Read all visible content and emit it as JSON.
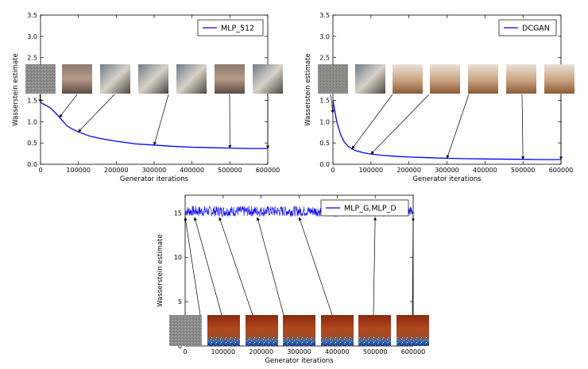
{
  "chart_data": [
    {
      "type": "line",
      "xlabel": "Generator iterations",
      "ylabel": "Wasserstein estimate",
      "xlim": [
        0,
        600000
      ],
      "ylim": [
        0,
        3.5
      ],
      "xticks": [
        0,
        100000,
        200000,
        300000,
        400000,
        500000,
        600000
      ],
      "yticks": [
        0.0,
        0.5,
        1.0,
        1.5,
        2.0,
        2.5,
        3.0,
        3.5
      ],
      "xtick_labels": [
        "0",
        "100000",
        "200000",
        "300000",
        "400000",
        "500000",
        "600000"
      ],
      "ytick_labels": [
        "0.0",
        "0.5",
        "1.0",
        "1.5",
        "2.0",
        "2.5",
        "3.0",
        "3.5"
      ],
      "legend": "top-right",
      "grid": false,
      "series": [
        {
          "name": "MLP_512",
          "color": "#0000ff",
          "x": [
            0,
            10000,
            25000,
            40000,
            55000,
            70000,
            85000,
            100000,
            130000,
            160000,
            200000,
            250000,
            300000,
            350000,
            400000,
            450000,
            500000,
            550000,
            600000
          ],
          "y": [
            1.45,
            1.4,
            1.33,
            1.2,
            1.05,
            0.9,
            0.82,
            0.76,
            0.66,
            0.6,
            0.54,
            0.48,
            0.45,
            0.42,
            0.4,
            0.39,
            0.38,
            0.37,
            0.37
          ]
        }
      ],
      "annotations": [
        {
          "target_x": 0,
          "target_y": 1.45,
          "image": "noise"
        },
        {
          "target_x": 50000,
          "target_y": 1.1,
          "image": "bedroom-sample"
        },
        {
          "target_x": 100000,
          "target_y": 0.76,
          "image": "bedroom-sample"
        },
        {
          "target_x": 300000,
          "target_y": 0.45,
          "image": "bedroom-sample"
        },
        {
          "target_x": 500000,
          "target_y": 0.38,
          "image": "bedroom-sample"
        },
        {
          "target_x": 600000,
          "target_y": 0.37,
          "image": "bedroom-sample"
        }
      ]
    },
    {
      "type": "line",
      "xlabel": "Generator iterations",
      "ylabel": "Wasserstein estimate",
      "xlim": [
        0,
        600000
      ],
      "ylim": [
        0,
        3.5
      ],
      "xticks": [
        0,
        100000,
        200000,
        300000,
        400000,
        500000,
        600000
      ],
      "yticks": [
        0.0,
        0.5,
        1.0,
        1.5,
        2.0,
        2.5,
        3.0,
        3.5
      ],
      "xtick_labels": [
        "0",
        "100000",
        "200000",
        "300000",
        "400000",
        "500000",
        "600000"
      ],
      "ytick_labels": [
        "0.0",
        "0.5",
        "1.0",
        "1.5",
        "2.0",
        "2.5",
        "3.0",
        "3.5"
      ],
      "legend": "top-right",
      "grid": false,
      "series": [
        {
          "name": "DCGAN",
          "color": "#0000ff",
          "x": [
            0,
            10000,
            20000,
            30000,
            40000,
            50000,
            60000,
            80000,
            100000,
            130000,
            160000,
            200000,
            250000,
            300000,
            350000,
            400000,
            450000,
            500000,
            550000,
            600000
          ],
          "y": [
            1.5,
            1.0,
            0.7,
            0.52,
            0.42,
            0.36,
            0.32,
            0.27,
            0.24,
            0.21,
            0.19,
            0.17,
            0.155,
            0.14,
            0.13,
            0.125,
            0.12,
            0.115,
            0.11,
            0.11
          ]
        }
      ],
      "annotations": [
        {
          "target_x": 0,
          "target_y": 1.2,
          "image": "noise"
        },
        {
          "target_x": 50000,
          "target_y": 0.36,
          "image": "bedroom-sample"
        },
        {
          "target_x": 100000,
          "target_y": 0.24,
          "image": "bedroom-sample"
        },
        {
          "target_x": 300000,
          "target_y": 0.14,
          "image": "bedroom-sample"
        },
        {
          "target_x": 500000,
          "target_y": 0.115,
          "image": "bedroom-sample"
        },
        {
          "target_x": 600000,
          "target_y": 0.11,
          "image": "bedroom-sample"
        }
      ]
    },
    {
      "type": "line",
      "xlabel": "Generator iterations",
      "ylabel": "Wasserstein estimate",
      "xlim": [
        0,
        600000
      ],
      "ylim": [
        0,
        17
      ],
      "xticks": [
        0,
        100000,
        200000,
        300000,
        400000,
        500000,
        600000
      ],
      "yticks": [
        0,
        5,
        10,
        15
      ],
      "xtick_labels": [
        "0",
        "100000",
        "200000",
        "300000",
        "400000",
        "500000",
        "600000"
      ],
      "ytick_labels": [
        "0",
        "5",
        "10",
        "15"
      ],
      "legend": "top-right",
      "grid": false,
      "series": [
        {
          "name": "MLP_G,MLP_D",
          "color": "#0000ff",
          "x": [
            0,
            600000
          ],
          "y": [
            15.2,
            15.2
          ],
          "noise_band": [
            14.6,
            15.8
          ]
        }
      ],
      "annotations": [
        {
          "target_x": 0,
          "target_y": 14.5,
          "image": "noise"
        },
        {
          "target_x": 25000,
          "target_y": 14.5,
          "image": "collapsed-sample"
        },
        {
          "target_x": 90000,
          "target_y": 14.5,
          "image": "collapsed-sample"
        },
        {
          "target_x": 190000,
          "target_y": 14.5,
          "image": "collapsed-sample"
        },
        {
          "target_x": 300000,
          "target_y": 14.5,
          "image": "collapsed-sample"
        },
        {
          "target_x": 500000,
          "target_y": 14.5,
          "image": "collapsed-sample"
        },
        {
          "target_x": 600000,
          "target_y": 14.5,
          "image": "collapsed-sample"
        }
      ]
    }
  ]
}
